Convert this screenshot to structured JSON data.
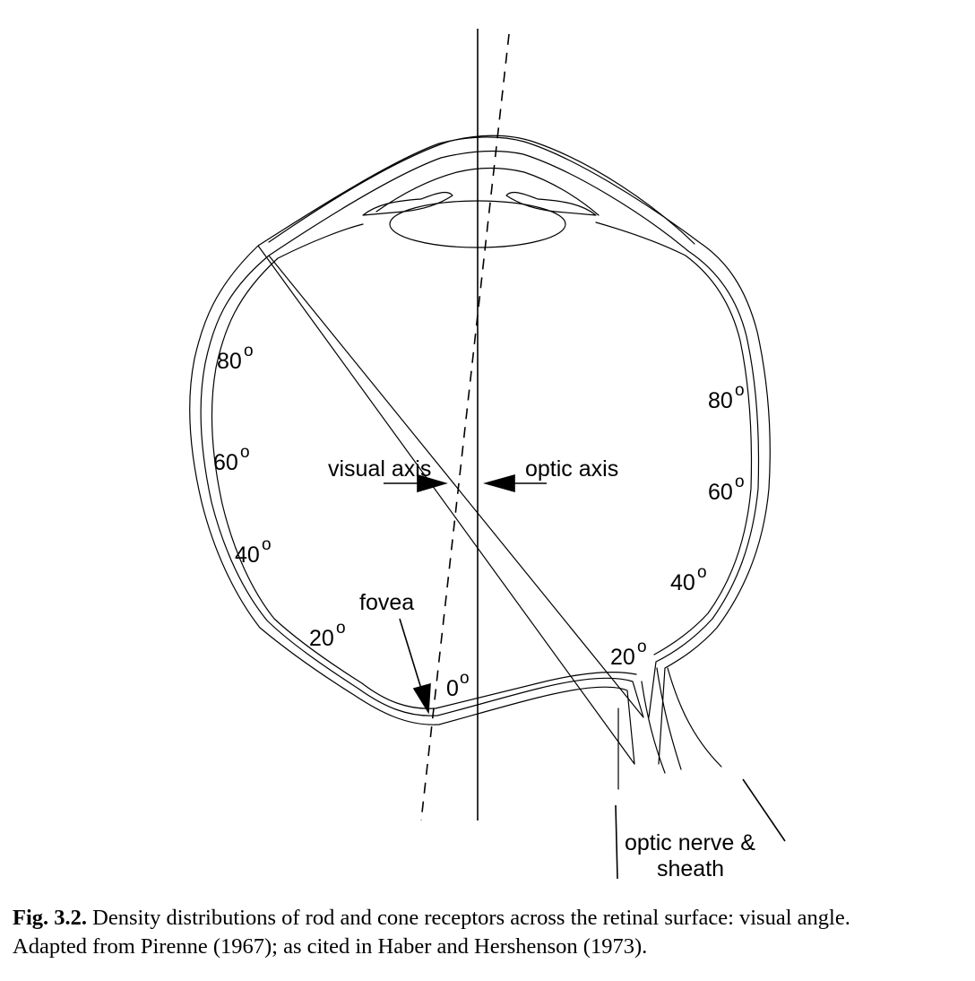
{
  "labels": {
    "visual_axis": "visual axis",
    "optic_axis": "optic axis",
    "fovea": "fovea",
    "optic_nerve_line1": "optic nerve &",
    "optic_nerve_line2": "sheath"
  },
  "angle_marks": {
    "degree_symbol": "o",
    "left": [
      "80",
      "60",
      "40",
      "20"
    ],
    "zero": "0",
    "right": [
      "80",
      "60",
      "40",
      "20"
    ]
  },
  "caption": {
    "fig_label": "Fig. 3.2.",
    "text_line1": " Density distributions of rod and cone receptors across the retinal surface: visual angle.",
    "text_line2": "Adapted from Pirenne (1967); as cited in Haber and Hershenson (1973)."
  }
}
